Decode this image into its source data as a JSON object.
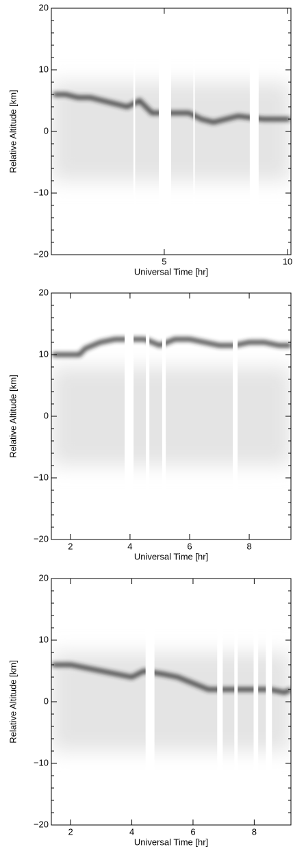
{
  "chart_data": [
    {
      "type": "density",
      "xlabel": "Universal Time [hr]",
      "ylabel": "Relative Altitude [km]",
      "xlim": [
        0.42,
        10.14
      ],
      "ylim": [
        -20,
        20
      ],
      "xticks": [
        5,
        10
      ],
      "yticks": [
        {
          "value": -20,
          "label": "−20"
        },
        {
          "value": -10,
          "label": "−10"
        },
        0,
        10,
        20
      ],
      "color": "#222222",
      "x": [
        0.5,
        1,
        1.5,
        2,
        2.5,
        3,
        3.5,
        4,
        4.5,
        5.5,
        6,
        6.5,
        7,
        7.5,
        8,
        9,
        9.5,
        10.1
      ],
      "values": [
        6,
        6,
        5.5,
        5.5,
        5,
        4.5,
        4,
        5,
        3,
        3,
        3,
        2,
        1.5,
        2,
        2.5,
        2,
        2,
        2
      ],
      "gaps": [
        [
          3.75,
          3.82
        ],
        [
          4.78,
          5.28
        ],
        [
          6.18,
          6.24
        ],
        [
          8.47,
          8.83
        ]
      ]
    },
    {
      "type": "density",
      "xlabel": "Universal Time [hr]",
      "ylabel": "Relative Altitude [km]",
      "xlim": [
        1.36,
        9.4
      ],
      "ylim": [
        -20,
        20
      ],
      "xticks": [
        2,
        4,
        6,
        8
      ],
      "yticks": [
        {
          "value": -20,
          "label": "−20"
        },
        {
          "value": -10,
          "label": "−10"
        },
        0,
        10,
        20
      ],
      "color": "#222222",
      "x": [
        1.4,
        2,
        2.3,
        2.5,
        3,
        3.5,
        4,
        4.5,
        5,
        5.5,
        6,
        6.5,
        7,
        7.5,
        8,
        8.5,
        9,
        9.4
      ],
      "values": [
        10,
        10,
        10,
        11,
        12,
        12.5,
        12.5,
        12.5,
        11.5,
        12.5,
        12.5,
        12,
        11.5,
        11.5,
        12,
        12,
        11.5,
        11.5
      ],
      "gaps": [
        [
          3.82,
          4.12
        ],
        [
          4.53,
          4.65
        ],
        [
          5.08,
          5.2
        ],
        [
          7.45,
          7.61
        ]
      ]
    },
    {
      "type": "density",
      "xlabel": "Universal Time [hr]",
      "ylabel": "Relative Altitude [km]",
      "xlim": [
        1.37,
        9.2
      ],
      "ylim": [
        -20,
        20
      ],
      "xticks": [
        2,
        4,
        6,
        8
      ],
      "yticks": [
        {
          "value": -20,
          "label": "−20"
        },
        {
          "value": -10,
          "label": "−10"
        },
        0,
        10,
        20
      ],
      "color": "#222222",
      "x": [
        1.4,
        2,
        2.5,
        3,
        3.5,
        4,
        4.4,
        5,
        5.5,
        6,
        6.5,
        7,
        7.5,
        8,
        8.5,
        9,
        9.2
      ],
      "values": [
        6,
        6,
        5.5,
        5,
        4.5,
        4,
        5,
        4.5,
        4,
        3,
        2,
        2,
        2,
        2,
        2,
        1.5,
        2
      ],
      "gaps": [
        [
          4.45,
          4.74
        ],
        [
          6.79,
          6.97
        ],
        [
          7.35,
          7.46
        ],
        [
          7.98,
          8.13
        ],
        [
          8.38,
          8.58
        ]
      ]
    }
  ]
}
